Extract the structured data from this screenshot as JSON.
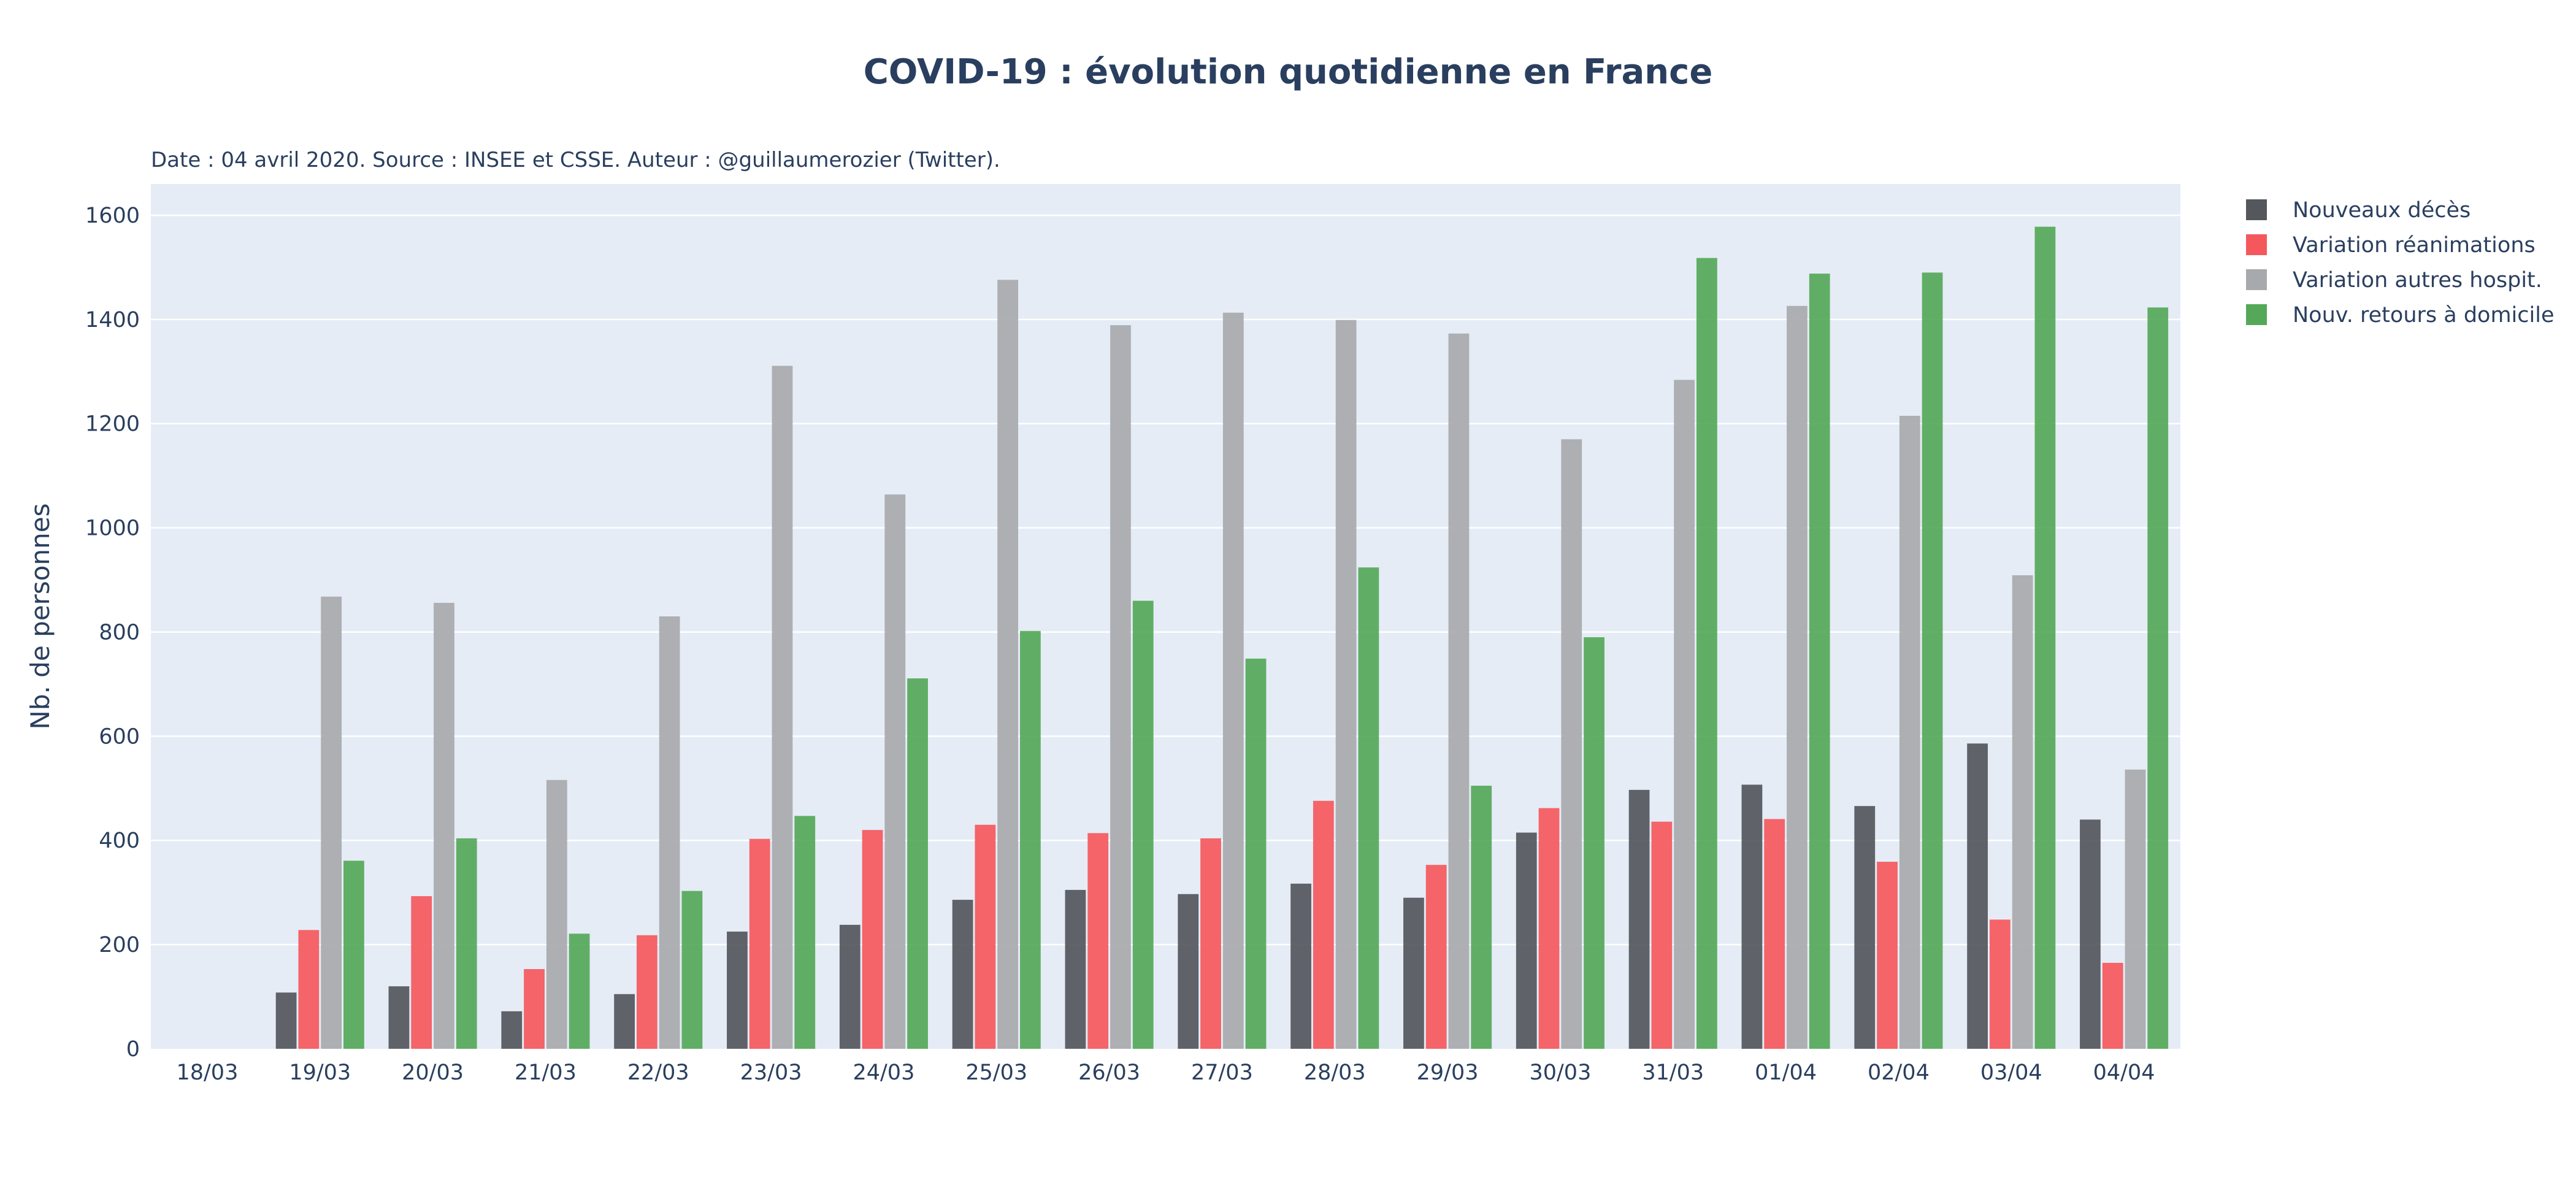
{
  "chart_data": {
    "type": "bar",
    "title": "COVID-19 : évolution quotidienne en France",
    "subtitle": "Date : 04 avril 2020. Source : INSEE et CSSE. Auteur : @guillaumerozier (Twitter).",
    "xlabel": "",
    "ylabel": "Nb. de personnes",
    "ylim": [
      0,
      1660
    ],
    "yticks": [
      0,
      200,
      400,
      600,
      800,
      1000,
      1200,
      1400,
      1600
    ],
    "grid": true,
    "legend_position": "top-right",
    "categories": [
      "18/03",
      "19/03",
      "20/03",
      "21/03",
      "22/03",
      "23/03",
      "24/03",
      "25/03",
      "26/03",
      "27/03",
      "28/03",
      "29/03",
      "30/03",
      "31/03",
      "01/04",
      "02/04",
      "03/04",
      "04/04"
    ],
    "series": [
      {
        "name": "Nouveaux décès",
        "color": "#54575c",
        "values": [
          0,
          108,
          120,
          72,
          105,
          225,
          238,
          286,
          305,
          297,
          317,
          290,
          415,
          497,
          507,
          466,
          586,
          440
        ]
      },
      {
        "name": "Variation réanimations",
        "color": "#f5585c",
        "values": [
          0,
          228,
          293,
          153,
          218,
          403,
          420,
          430,
          414,
          404,
          476,
          353,
          462,
          436,
          441,
          359,
          248,
          165
        ]
      },
      {
        "name": "Variation autres hospit.",
        "color": "#a8a9ac",
        "values": [
          0,
          868,
          856,
          516,
          830,
          1311,
          1064,
          1476,
          1389,
          1413,
          1399,
          1373,
          1170,
          1284,
          1426,
          1215,
          909,
          536
        ]
      },
      {
        "name": "Nouv. retours à domicile",
        "color": "#55a858",
        "values": [
          0,
          361,
          404,
          221,
          303,
          447,
          711,
          802,
          860,
          749,
          924,
          505,
          790,
          1518,
          1488,
          1490,
          1578,
          1423
        ]
      }
    ]
  }
}
